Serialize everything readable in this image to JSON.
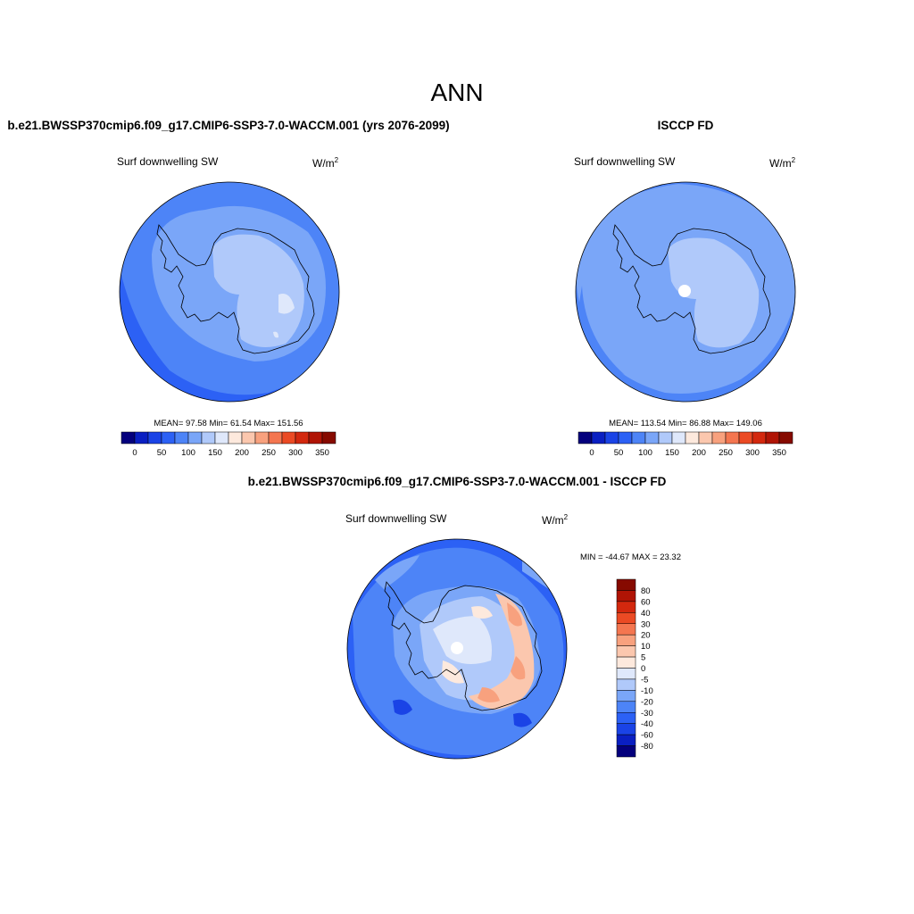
{
  "figure": {
    "title": "ANN"
  },
  "colormaps": {
    "abs_colors": [
      "#04007d",
      "#0a1fc2",
      "#1a43e6",
      "#2c61f5",
      "#4d84f7",
      "#7aa6f8",
      "#b0c9fa",
      "#dfe8fb",
      "#fde9dd",
      "#fbc7ae",
      "#f8a17e",
      "#f47650",
      "#eb4a24",
      "#d3280e",
      "#b01405",
      "#860a00"
    ],
    "abs_ticks": [
      "0",
      "50",
      "100",
      "150",
      "200",
      "250",
      "300",
      "350"
    ],
    "diff_colors": [
      "#04007d",
      "#0a1fc2",
      "#1a43e6",
      "#2c61f5",
      "#4d84f7",
      "#7aa6f8",
      "#b0c9fa",
      "#dfe8fb",
      "#fde9dd",
      "#fbc7ae",
      "#f8a17e",
      "#f47650",
      "#eb4a24",
      "#d3280e",
      "#b01405",
      "#860a00"
    ],
    "diff_labels": [
      "80",
      "60",
      "40",
      "30",
      "20",
      "10",
      "5",
      "0",
      "-5",
      "-10",
      "-20",
      "-30",
      "-40",
      "-60",
      "-80"
    ]
  },
  "panels": {
    "model": {
      "title": "b.e21.BWSSP370cmip6.f09_g17.CMIP6-SSP3-7.0-WACCM.001 (yrs 2076-2099)",
      "variable": "Surf downwelling SW",
      "units": "W/m",
      "units_sup": "2",
      "stats": "MEAN=  97.58  Min=  61.54  Max= 151.56"
    },
    "obs": {
      "title": "ISCCP FD",
      "variable": "Surf downwelling SW",
      "units": "W/m",
      "units_sup": "2",
      "stats": "MEAN= 113.54  Min=  86.88  Max= 149.06"
    },
    "diff": {
      "title": "b.e21.BWSSP370cmip6.f09_g17.CMIP6-SSP3-7.0-WACCM.001 - ISCCP FD",
      "variable": "Surf downwelling SW",
      "units": "W/m",
      "units_sup": "2",
      "stats": "MIN = -44.67 MAX =  23.32"
    }
  }
}
